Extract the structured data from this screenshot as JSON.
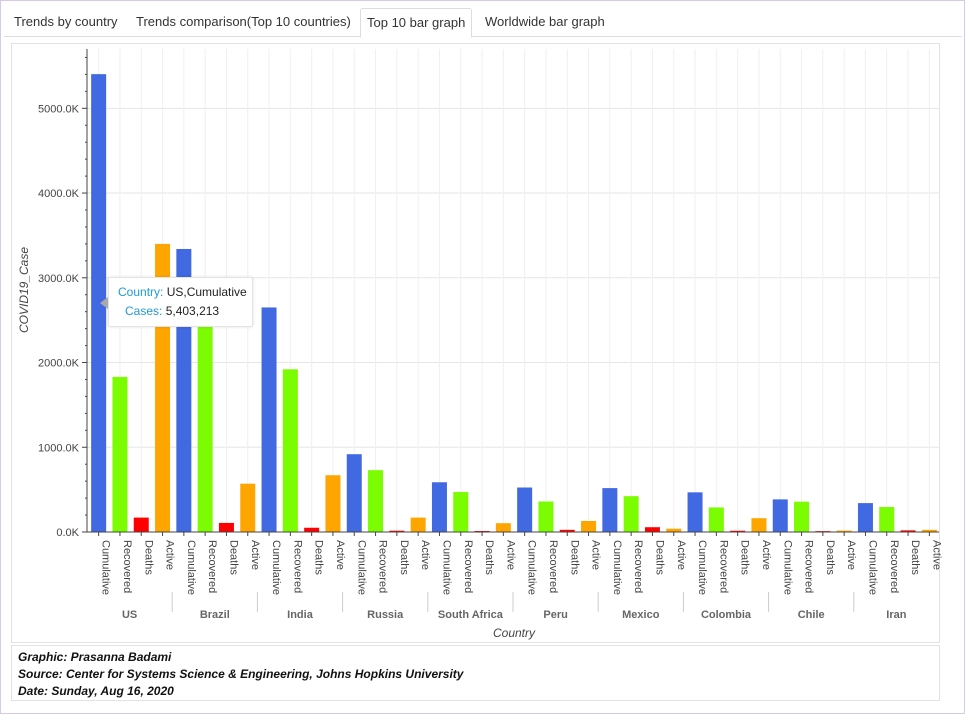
{
  "tabs": [
    {
      "label": "Trends by country",
      "active": false
    },
    {
      "label": "Trends comparison(Top 10 countries)",
      "active": false
    },
    {
      "label": "Top 10 bar graph",
      "active": true
    },
    {
      "label": "Worldwide bar graph",
      "active": false
    }
  ],
  "tooltip": {
    "country_key": "Country:",
    "country_val": "US,Cumulative",
    "cases_key": "Cases:",
    "cases_val": "5,403,213"
  },
  "caption": {
    "line1": "Graphic: Prasanna Badami",
    "line2": "Source: Center for Systems Science & Engineering, Johns Hopkins University",
    "line3": "Date: Sunday, Aug 16, 2020"
  },
  "colors": {
    "Cumulative": "#4169e1",
    "Recovered": "#7cfc00",
    "Deaths": "#ff0000",
    "Active": "#ffa500"
  },
  "chart_data": {
    "type": "bar",
    "xlabel": "Country",
    "ylabel": "COVID19_Case",
    "ylim": [
      0,
      5700000
    ],
    "yticks": [
      0,
      1000000,
      2000000,
      3000000,
      4000000,
      5000000
    ],
    "ytick_labels": [
      "0.0K",
      "1000.0K",
      "2000.0K",
      "3000.0K",
      "4000.0K",
      "5000.0K"
    ],
    "grid": true,
    "subcategories": [
      "Cumulative",
      "Recovered",
      "Deaths",
      "Active"
    ],
    "categories": [
      "US",
      "Brazil",
      "India",
      "Russia",
      "South Africa",
      "Peru",
      "Mexico",
      "Colombia",
      "Chile",
      "Iran"
    ],
    "groups": [
      {
        "country": "US",
        "values": [
          5403213,
          1830000,
          170000,
          3400000
        ]
      },
      {
        "country": "Brazil",
        "values": [
          3340000,
          2450000,
          107000,
          570000
        ]
      },
      {
        "country": "India",
        "values": [
          2650000,
          1920000,
          50000,
          670000
        ]
      },
      {
        "country": "Russia",
        "values": [
          918000,
          730000,
          15600,
          170000
        ]
      },
      {
        "country": "South Africa",
        "values": [
          587000,
          472000,
          11800,
          104000
        ]
      },
      {
        "country": "Peru",
        "values": [
          525000,
          360000,
          25800,
          130000
        ]
      },
      {
        "country": "Mexico",
        "values": [
          518000,
          423000,
          56500,
          39000
        ]
      },
      {
        "country": "Colombia",
        "values": [
          468000,
          290000,
          15100,
          163000
        ]
      },
      {
        "country": "Chile",
        "values": [
          385000,
          358000,
          10400,
          17000
        ]
      },
      {
        "country": "Iran",
        "values": [
          341000,
          295000,
          19500,
          26000
        ]
      }
    ]
  }
}
